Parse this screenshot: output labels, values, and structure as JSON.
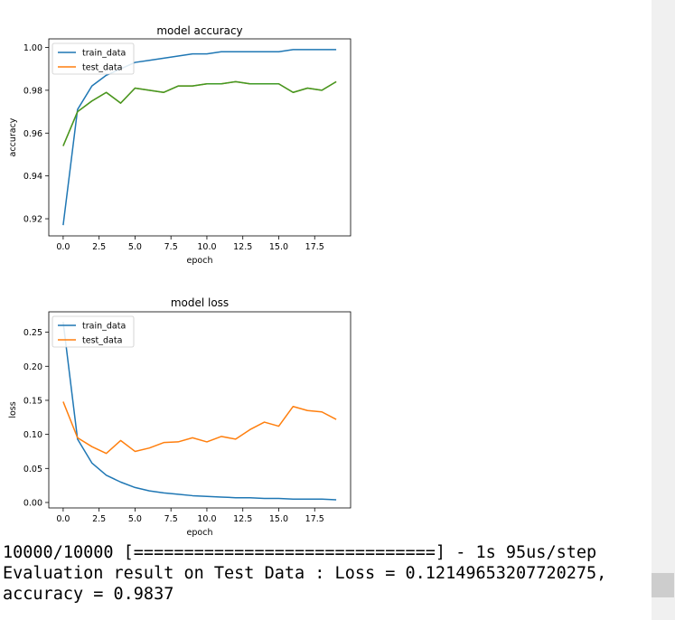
{
  "chart_data": [
    {
      "type": "line",
      "title": "model accuracy",
      "xlabel": "epoch",
      "ylabel": "accuracy",
      "xlim": [
        -1,
        20
      ],
      "ylim": [
        0.912,
        1.004
      ],
      "xticks": [
        "0.0",
        "2.5",
        "5.0",
        "7.5",
        "10.0",
        "12.5",
        "15.0",
        "17.5"
      ],
      "xtick_values": [
        0,
        2.5,
        5,
        7.5,
        10,
        12.5,
        15,
        17.5
      ],
      "yticks": [
        "0.92",
        "0.94",
        "0.96",
        "0.98",
        "1.00"
      ],
      "ytick_values": [
        0.92,
        0.94,
        0.96,
        0.98,
        1.0
      ],
      "legend_position": "upper left",
      "x": [
        0,
        1,
        2,
        3,
        4,
        5,
        6,
        7,
        8,
        9,
        10,
        11,
        12,
        13,
        14,
        15,
        16,
        17,
        18,
        19
      ],
      "series": [
        {
          "name": "train_data",
          "color": "#1f77b4",
          "values": [
            0.917,
            0.971,
            0.982,
            0.987,
            0.99,
            0.993,
            0.994,
            0.995,
            0.996,
            0.997,
            0.997,
            0.998,
            0.998,
            0.998,
            0.998,
            0.998,
            0.999,
            0.999,
            0.999,
            0.999
          ]
        },
        {
          "name": "test_data",
          "color": "#ff7f0e",
          "values": [
            0.954,
            0.97,
            0.975,
            0.979,
            0.974,
            0.981,
            0.98,
            0.979,
            0.982,
            0.982,
            0.983,
            0.983,
            0.984,
            0.983,
            0.983,
            0.983,
            0.979,
            0.981,
            0.98,
            0.984
          ]
        }
      ],
      "overlap_color": "#3e9a25"
    },
    {
      "type": "line",
      "title": "model loss",
      "xlabel": "epoch",
      "ylabel": "loss",
      "xlim": [
        -1,
        20
      ],
      "ylim": [
        -0.008,
        0.28
      ],
      "xticks": [
        "0.0",
        "2.5",
        "5.0",
        "7.5",
        "10.0",
        "12.5",
        "15.0",
        "17.5"
      ],
      "xtick_values": [
        0,
        2.5,
        5,
        7.5,
        10,
        12.5,
        15,
        17.5
      ],
      "yticks": [
        "0.00",
        "0.05",
        "0.10",
        "0.15",
        "0.20",
        "0.25"
      ],
      "ytick_values": [
        0,
        0.05,
        0.1,
        0.15,
        0.2,
        0.25
      ],
      "legend_position": "upper left",
      "x": [
        0,
        1,
        2,
        3,
        4,
        5,
        6,
        7,
        8,
        9,
        10,
        11,
        12,
        13,
        14,
        15,
        16,
        17,
        18,
        19
      ],
      "series": [
        {
          "name": "train_data",
          "color": "#1f77b4",
          "values": [
            0.265,
            0.093,
            0.058,
            0.04,
            0.03,
            0.022,
            0.017,
            0.014,
            0.012,
            0.01,
            0.009,
            0.008,
            0.007,
            0.007,
            0.006,
            0.006,
            0.005,
            0.005,
            0.005,
            0.004
          ]
        },
        {
          "name": "test_data",
          "color": "#ff7f0e",
          "values": [
            0.148,
            0.095,
            0.082,
            0.072,
            0.091,
            0.075,
            0.08,
            0.088,
            0.089,
            0.095,
            0.089,
            0.097,
            0.093,
            0.107,
            0.118,
            0.112,
            0.141,
            0.135,
            0.133,
            0.122
          ]
        }
      ]
    }
  ],
  "console": {
    "progress_line": "10000/10000 [==============================] - 1s 95us/step",
    "result_line_1": "Evaluation result on Test Data : Loss = 0.12149653207720275,",
    "result_line_2": "accuracy = 0.9837"
  }
}
